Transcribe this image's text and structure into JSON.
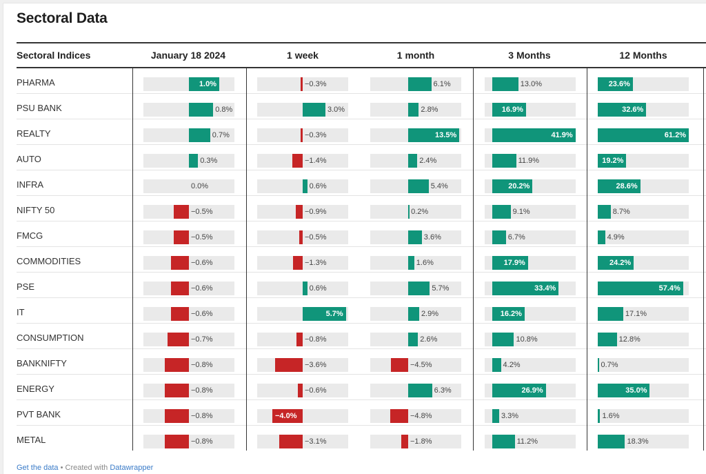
{
  "title": "Sectoral Data",
  "colors": {
    "positive": "#10957a",
    "negative": "#c62526",
    "track": "#eaeaea"
  },
  "footer": {
    "get_data": "Get the data",
    "separator": " • Created with ",
    "tool": "Datawrapper"
  },
  "chart_data": {
    "type": "table",
    "row_header": "Sectoral Indices",
    "columns": [
      {
        "label": "January 18 2024",
        "domain": [
          -1.5,
          1.5
        ]
      },
      {
        "label": "1 week",
        "domain": [
          -6,
          6
        ]
      },
      {
        "label": "1 month",
        "domain": [
          -10,
          14
        ]
      },
      {
        "label": "3 Months",
        "domain": [
          -4,
          42
        ]
      },
      {
        "label": "12 Months",
        "domain": [
          0,
          61.2
        ]
      }
    ],
    "rows": [
      {
        "sector": "PHARMA",
        "values": [
          1.0,
          -0.3,
          6.1,
          13.0,
          23.6
        ],
        "labels": [
          "1.0%",
          "−0.3%",
          "6.1%",
          "13.0%",
          "23.6%"
        ]
      },
      {
        "sector": "PSU BANK",
        "values": [
          0.8,
          3.0,
          2.8,
          16.9,
          32.6
        ],
        "labels": [
          "0.8%",
          "3.0%",
          "2.8%",
          "16.9%",
          "32.6%"
        ]
      },
      {
        "sector": "REALTY",
        "values": [
          0.7,
          -0.3,
          13.5,
          41.9,
          61.2
        ],
        "labels": [
          "0.7%",
          "−0.3%",
          "13.5%",
          "41.9%",
          "61.2%"
        ]
      },
      {
        "sector": "AUTO",
        "values": [
          0.3,
          -1.4,
          2.4,
          11.9,
          19.2
        ],
        "labels": [
          "0.3%",
          "−1.4%",
          "2.4%",
          "11.9%",
          "19.2%"
        ]
      },
      {
        "sector": "INFRA",
        "values": [
          0.0,
          0.6,
          5.4,
          20.2,
          28.6
        ],
        "labels": [
          "0.0%",
          "0.6%",
          "5.4%",
          "20.2%",
          "28.6%"
        ]
      },
      {
        "sector": "NIFTY 50",
        "values": [
          -0.5,
          -0.9,
          0.2,
          9.1,
          8.7
        ],
        "labels": [
          "−0.5%",
          "−0.9%",
          "0.2%",
          "9.1%",
          "8.7%"
        ]
      },
      {
        "sector": "FMCG",
        "values": [
          -0.5,
          -0.5,
          3.6,
          6.7,
          4.9
        ],
        "labels": [
          "−0.5%",
          "−0.5%",
          "3.6%",
          "6.7%",
          "4.9%"
        ]
      },
      {
        "sector": "COMMODITIES",
        "values": [
          -0.6,
          -1.3,
          1.6,
          17.9,
          24.2
        ],
        "labels": [
          "−0.6%",
          "−1.3%",
          "1.6%",
          "17.9%",
          "24.2%"
        ]
      },
      {
        "sector": "PSE",
        "values": [
          -0.6,
          0.6,
          5.7,
          33.4,
          57.4
        ],
        "labels": [
          "−0.6%",
          "0.6%",
          "5.7%",
          "33.4%",
          "57.4%"
        ]
      },
      {
        "sector": "IT",
        "values": [
          -0.6,
          5.7,
          2.9,
          16.2,
          17.1
        ],
        "labels": [
          "−0.6%",
          "5.7%",
          "2.9%",
          "16.2%",
          "17.1%"
        ]
      },
      {
        "sector": "CONSUMPTION",
        "values": [
          -0.7,
          -0.8,
          2.6,
          10.8,
          12.8
        ],
        "labels": [
          "−0.7%",
          "−0.8%",
          "2.6%",
          "10.8%",
          "12.8%"
        ]
      },
      {
        "sector": "BANKNIFTY",
        "values": [
          -0.8,
          -3.6,
          -4.5,
          4.2,
          0.7
        ],
        "labels": [
          "−0.8%",
          "−3.6%",
          "−4.5%",
          "4.2%",
          "0.7%"
        ]
      },
      {
        "sector": "ENERGY",
        "values": [
          -0.8,
          -0.6,
          6.3,
          26.9,
          35.0
        ],
        "labels": [
          "−0.8%",
          "−0.6%",
          "6.3%",
          "26.9%",
          "35.0%"
        ]
      },
      {
        "sector": "PVT BANK",
        "values": [
          -0.8,
          -4.0,
          -4.8,
          3.3,
          1.6
        ],
        "labels": [
          "−0.8%",
          "−4.0%",
          "−4.8%",
          "3.3%",
          "1.6%"
        ]
      },
      {
        "sector": "METAL",
        "values": [
          -0.8,
          -3.1,
          -1.8,
          11.2,
          18.3
        ],
        "labels": [
          "−0.8%",
          "−3.1%",
          "−1.8%",
          "11.2%",
          "18.3%"
        ]
      }
    ]
  }
}
